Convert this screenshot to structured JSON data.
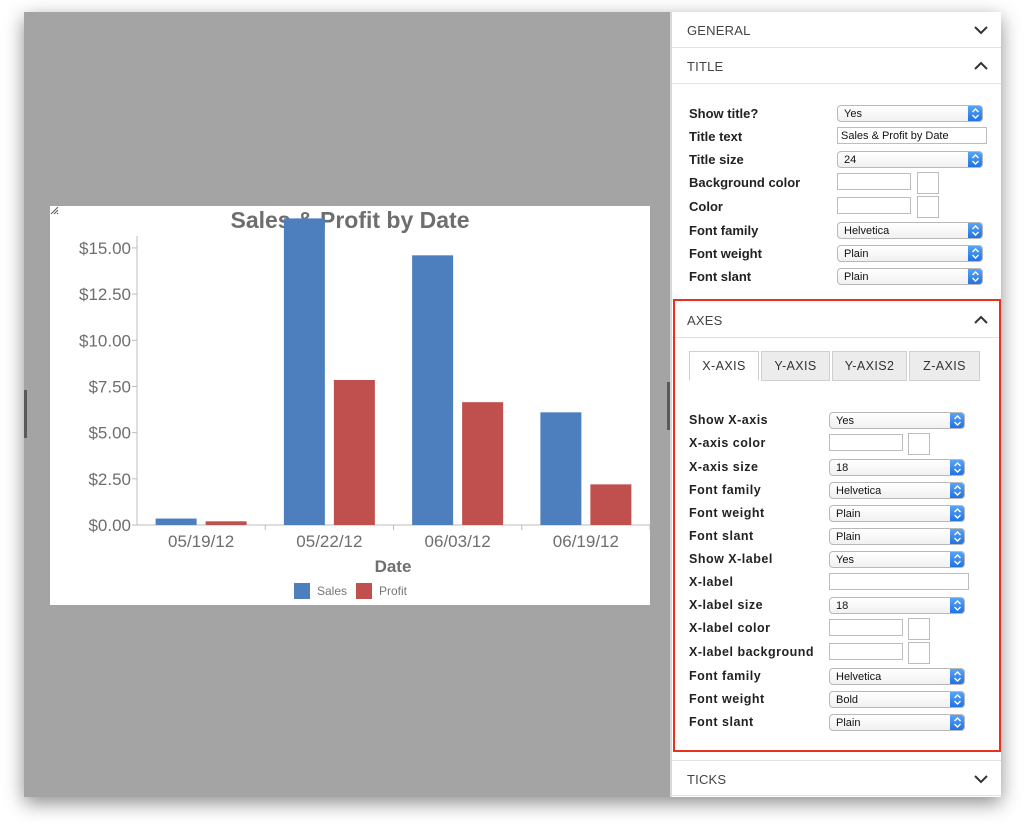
{
  "colors": {
    "sales": "#4d7fbf",
    "profit": "#c0504d",
    "highlight": "#e8331c",
    "select_arrow": "#1e6fe4"
  },
  "chart_data": {
    "type": "bar",
    "title": "Sales & Profit by Date",
    "xlabel": "Date",
    "ylabel": "",
    "categories": [
      "05/19/12",
      "05/22/12",
      "06/03/12",
      "06/19/12"
    ],
    "series": [
      {
        "name": "Sales",
        "values": [
          0.35,
          16.6,
          14.6,
          6.1
        ]
      },
      {
        "name": "Profit",
        "values": [
          0.2,
          7.85,
          6.65,
          2.2
        ]
      }
    ],
    "ylim": [
      0,
      17
    ],
    "yticks": [
      0,
      2.5,
      5,
      7.5,
      10,
      12.5,
      15
    ],
    "ytick_labels": [
      "$0.00",
      "$2.50",
      "$5.00",
      "$7.50",
      "$10.00",
      "$12.50",
      "$15.00"
    ],
    "legend": "bottom",
    "grid": false
  },
  "panel": {
    "general": {
      "title": "GENERAL"
    },
    "title_section": {
      "title": "TITLE",
      "show_title_label": "Show title?",
      "show_title_value": "Yes",
      "title_text_label": "Title text",
      "title_text_value": "Sales & Profit by Date",
      "title_size_label": "Title size",
      "title_size_value": "24",
      "bg_color_label": "Background color",
      "color_label": "Color",
      "font_family_label": "Font family",
      "font_family_value": "Helvetica",
      "font_weight_label": "Font weight",
      "font_weight_value": "Plain",
      "font_slant_label": "Font slant",
      "font_slant_value": "Plain"
    },
    "axes": {
      "title": "AXES",
      "tabs": [
        "X-AXIS",
        "Y-AXIS",
        "Y-AXIS2",
        "Z-AXIS"
      ],
      "show_x_axis_label": "Show X-axis",
      "show_x_axis_value": "Yes",
      "x_axis_color_label": "X-axis color",
      "x_axis_size_label": "X-axis size",
      "x_axis_size_value": "18",
      "font_family_label": "Font family",
      "font_family_value": "Helvetica",
      "font_weight_label": "Font weight",
      "font_weight_value": "Plain",
      "font_slant_label": "Font slant",
      "font_slant_value": "Plain",
      "show_x_label_label": "Show X-label",
      "show_x_label_value": "Yes",
      "x_label_label": "X-label",
      "x_label_value": "",
      "x_label_size_label": "X-label size",
      "x_label_size_value": "18",
      "x_label_color_label": "X-label color",
      "x_label_bg_label": "X-label background",
      "label_font_family_label": "Font family",
      "label_font_family_value": "Helvetica",
      "label_font_weight_label": "Font weight",
      "label_font_weight_value": "Bold",
      "label_font_slant_label": "Font slant",
      "label_font_slant_value": "Plain"
    },
    "ticks": {
      "title": "TICKS"
    }
  }
}
